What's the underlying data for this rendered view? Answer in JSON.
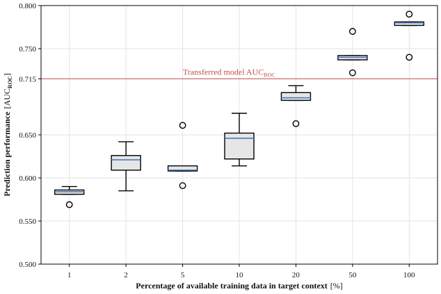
{
  "chart_data": {
    "type": "box",
    "xlabel": "Percentage of available training data in target context",
    "xlabel_unit": "[%]",
    "ylabel_main": "Prediction performance",
    "ylabel_unit_open": "[AUC",
    "ylabel_unit_sub": "ROC",
    "ylabel_unit_close": "]",
    "categories": [
      "1",
      "2",
      "5",
      "10",
      "20",
      "50",
      "100"
    ],
    "ylim": [
      0.5,
      0.8
    ],
    "yticks": [
      {
        "value": 0.5,
        "label": "0.500"
      },
      {
        "value": 0.55,
        "label": "0.550"
      },
      {
        "value": 0.6,
        "label": "0.600"
      },
      {
        "value": 0.65,
        "label": "0.650"
      },
      {
        "value": 0.715,
        "label": "0.715"
      },
      {
        "value": 0.75,
        "label": "0.750"
      },
      {
        "value": 0.8,
        "label": "0.800"
      }
    ],
    "reference_line": {
      "value": 0.715,
      "label_main": "Transferred model AUC",
      "label_sub": "ROC",
      "color": "#c0504d"
    },
    "boxes": [
      {
        "category": "1",
        "whisker_low": 0.581,
        "q1": 0.581,
        "median": 0.584,
        "q3": 0.586,
        "whisker_high": 0.59,
        "outliers": [
          0.569
        ]
      },
      {
        "category": "2",
        "whisker_low": 0.585,
        "q1": 0.609,
        "median": 0.621,
        "q3": 0.626,
        "whisker_high": 0.642,
        "outliers": []
      },
      {
        "category": "5",
        "whisker_low": 0.608,
        "q1": 0.608,
        "median": 0.609,
        "q3": 0.614,
        "whisker_high": 0.614,
        "outliers": [
          0.591,
          0.661
        ]
      },
      {
        "category": "10",
        "whisker_low": 0.614,
        "q1": 0.622,
        "median": 0.646,
        "q3": 0.652,
        "whisker_high": 0.675,
        "outliers": []
      },
      {
        "category": "20",
        "whisker_low": 0.69,
        "q1": 0.69,
        "median": 0.693,
        "q3": 0.699,
        "whisker_high": 0.707,
        "outliers": [
          0.663
        ]
      },
      {
        "category": "50",
        "whisker_low": 0.737,
        "q1": 0.737,
        "median": 0.74,
        "q3": 0.742,
        "whisker_high": 0.742,
        "outliers": [
          0.77,
          0.722
        ]
      },
      {
        "category": "100",
        "whisker_low": 0.777,
        "q1": 0.777,
        "median": 0.78,
        "q3": 0.781,
        "whisker_high": 0.781,
        "outliers": [
          0.79,
          0.74
        ]
      }
    ],
    "grid": true,
    "colors": {
      "box_fill": "#e6e6e6",
      "box_edge": "#000000",
      "median": "#4a7ab8",
      "grid": "#e3e3e3",
      "reference": "#c0504d"
    }
  }
}
